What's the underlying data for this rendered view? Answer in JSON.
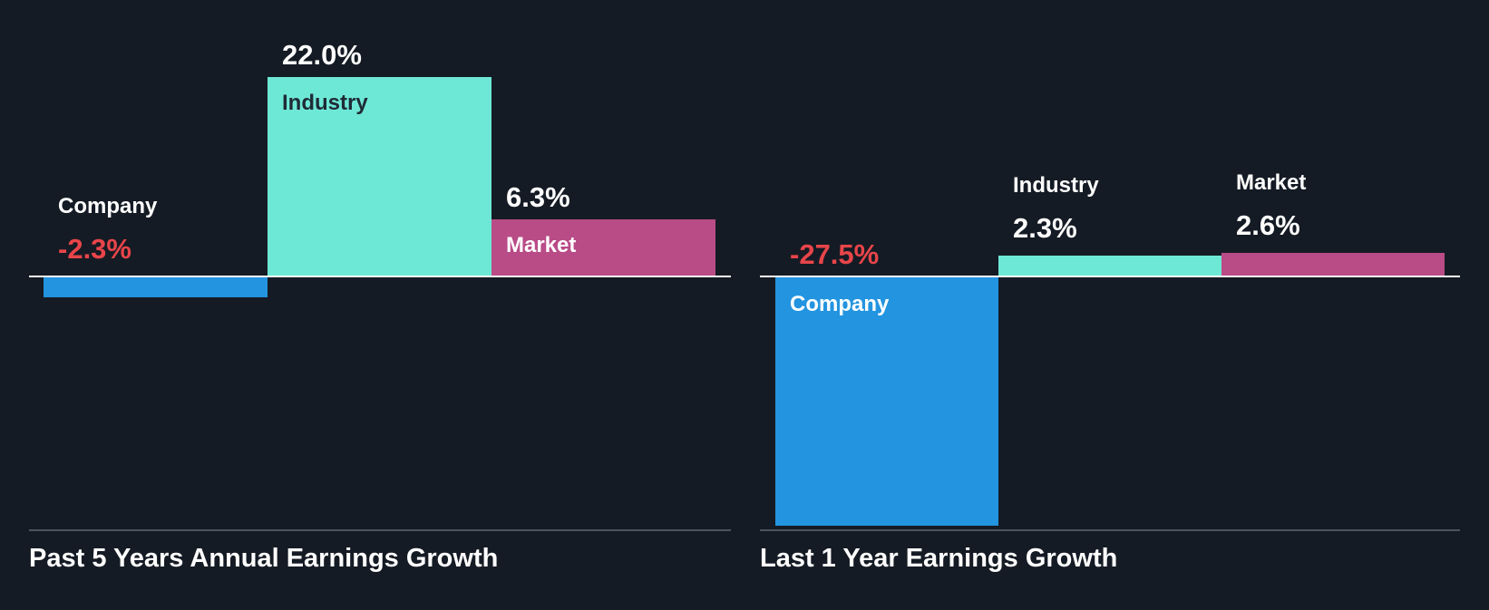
{
  "chart_data": [
    {
      "type": "bar",
      "title": "Past 5 Years Annual Earnings Growth",
      "categories": [
        "Company",
        "Industry",
        "Market"
      ],
      "values": [
        -2.3,
        22.0,
        6.3
      ],
      "value_labels": [
        "-2.3%",
        "22.0%",
        "6.3%"
      ],
      "unit": "%",
      "grid": false,
      "legend": "none"
    },
    {
      "type": "bar",
      "title": "Last 1 Year Earnings Growth",
      "categories": [
        "Company",
        "Industry",
        "Market"
      ],
      "values": [
        -27.5,
        2.3,
        2.6
      ],
      "value_labels": [
        "-27.5%",
        "2.3%",
        "2.6%"
      ],
      "unit": "%",
      "grid": false,
      "legend": "none"
    }
  ],
  "colors": {
    "background": "#151b24",
    "company": "#2394e0",
    "industry": "#6ee8d6",
    "market": "#b94b87",
    "negative_text": "#e8454a",
    "text": "#ffffff",
    "dark_text": "#1f2a36",
    "baseline": "#ffffff",
    "bottom_line": "#4d545e"
  }
}
